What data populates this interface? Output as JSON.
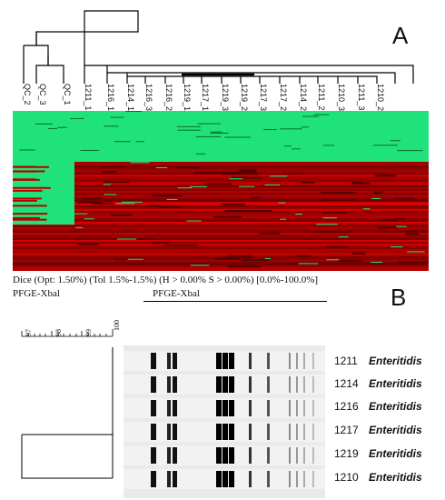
{
  "panel_a": {
    "label": "A",
    "columns": [
      "QC_2",
      "QC_3",
      "QC_1",
      "1211_1",
      "1216_1",
      "1214_1",
      "1216_3",
      "1216_2",
      "1219_1",
      "1217_1",
      "1219_3",
      "1219_2",
      "1217_3",
      "1217_2",
      "1214_2",
      "1211_2",
      "1210_3",
      "1211_3",
      "1210_2"
    ],
    "colors": {
      "green": "#1fe37a",
      "red": "#b80000",
      "dark_red": "#5a0000"
    }
  },
  "panel_b": {
    "label": "B",
    "dice_settings": "Dice (Opt: 1.50%) (Tol 1.5%-1.5%) (H > 0.00%  S > 0.00%) [0.0%-100.0%]",
    "pfge_left": "PFGE-Xbal",
    "pfge_center": "PFGE-Xbal",
    "scale_ticks": [
      "97",
      "98",
      "99",
      "100"
    ],
    "lanes": [
      {
        "id": "1211",
        "species": "Enteritidis"
      },
      {
        "id": "1214",
        "species": "Enteritidis"
      },
      {
        "id": "1216",
        "species": "Enteritidis"
      },
      {
        "id": "1217",
        "species": "Enteritidis"
      },
      {
        "id": "1219",
        "species": "Enteritidis"
      },
      {
        "id": "1210",
        "species": "Enteritidis"
      }
    ]
  }
}
